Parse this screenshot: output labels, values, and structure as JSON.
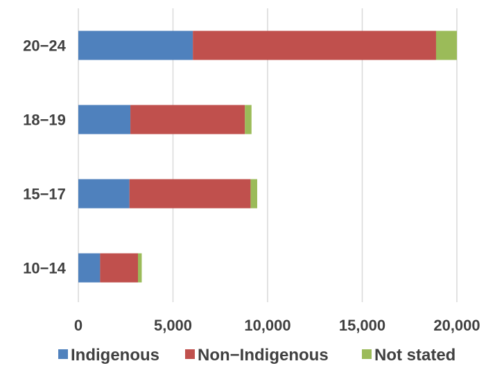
{
  "chart_data": {
    "type": "bar",
    "orientation": "horizontal",
    "stacked": true,
    "title": "",
    "xlabel": "",
    "ylabel": "",
    "categories": [
      "20−24",
      "18−19",
      "15−17",
      "10−14"
    ],
    "series": [
      {
        "name": "Indigenous",
        "color": "#4f81bd",
        "values": [
          6050,
          2750,
          2700,
          1150
        ]
      },
      {
        "name": "Non−Indigenous",
        "color": "#c0504d",
        "values": [
          12850,
          6050,
          6400,
          2000
        ]
      },
      {
        "name": "Not stated",
        "color": "#9bbb59",
        "values": [
          1100,
          350,
          350,
          200
        ]
      }
    ],
    "xlim": [
      0,
      20000
    ],
    "xticks": [
      0,
      5000,
      10000,
      15000,
      20000
    ],
    "xtick_labels": [
      "0",
      "5,000",
      "10,000",
      "15,000",
      "20,000"
    ],
    "grid": true,
    "grid_axis": "x",
    "legend_position": "bottom"
  }
}
